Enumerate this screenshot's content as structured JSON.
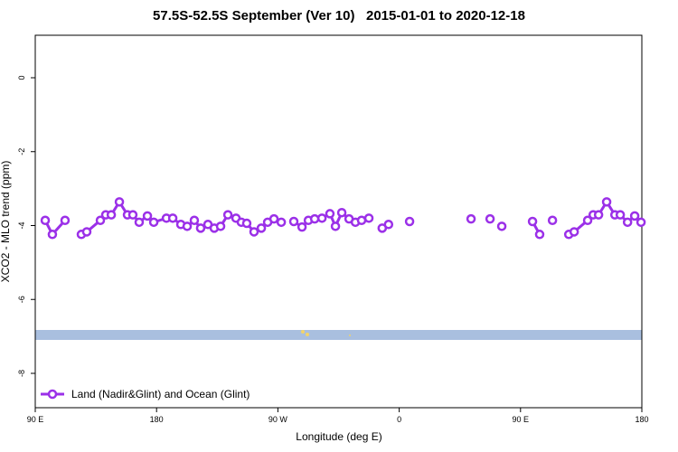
{
  "chart_data": {
    "type": "line",
    "title": "57.5S-52.5S September (Ver 10)   2015-01-01 to 2020-12-18",
    "x_label": "Longitude (deg E)",
    "y_label": "XCO2 - MLO trend (ppm)",
    "xlim": [
      90,
      540
    ],
    "xticks": [
      {
        "value": 90,
        "label": "90 E"
      },
      180,
      {
        "value": 270,
        "label": "90 W"
      },
      {
        "value": 360,
        "label": "0"
      },
      {
        "value": 450,
        "label": "90 E"
      },
      {
        "value": 540,
        "label": "180"
      }
    ],
    "ylim": [
      -8.93,
      1.15
    ],
    "yticks": [
      0,
      -2,
      -4,
      -6,
      -8
    ],
    "legend": "bottom-left",
    "series": [
      {
        "name": "Land (Nadir&Glint) and Ocean (Glint)",
        "color": "#9b30e8",
        "x": [
          97.4,
          102.7,
          112.1,
          null,
          124.2,
          128.2,
          138.3,
          142.3,
          146.4,
          152.4,
          158.4,
          162.4,
          167.1,
          173.2,
          177.9,
          187.3,
          192.0,
          198.0,
          202.7,
          208.0,
          212.7,
          218.1,
          222.8,
          227.5,
          232.9,
          238.9,
          242.9,
          246.9,
          252.3,
          257.7,
          262.4,
          267.1,
          272.5,
          null,
          281.8,
          287.9,
          292.6,
          297.3,
          302.7,
          308.6,
          312.7,
          317.4,
          322.8,
          327.5,
          332.1,
          337.5,
          null,
          347.4,
          352.1,
          null,
          367.7,
          null,
          413.3,
          null,
          427.4,
          null,
          436.1,
          null,
          458.9,
          464.2,
          null,
          473.7,
          null,
          485.8,
          489.8,
          499.8,
          503.9,
          507.9,
          513.9,
          520.0,
          524.0,
          529.4,
          534.7,
          539.4
        ],
        "values": [
          -3.86,
          -4.24,
          -3.86,
          null,
          -4.24,
          -4.17,
          -3.86,
          -3.71,
          -3.71,
          -3.36,
          -3.71,
          -3.71,
          -3.91,
          -3.74,
          -3.91,
          -3.8,
          -3.8,
          -3.97,
          -4.02,
          -3.86,
          -4.07,
          -3.97,
          -4.07,
          -4.02,
          -3.71,
          -3.8,
          -3.91,
          -3.94,
          -4.17,
          -4.07,
          -3.91,
          -3.82,
          -3.91,
          null,
          -3.89,
          -4.04,
          -3.86,
          -3.82,
          -3.8,
          -3.68,
          -4.02,
          -3.65,
          -3.82,
          -3.91,
          -3.86,
          -3.8,
          null,
          -4.07,
          -3.97,
          null,
          -3.89,
          null,
          -3.82,
          null,
          -3.82,
          null,
          -4.02,
          null,
          -3.89,
          -4.24,
          null,
          -3.86,
          null,
          -4.24,
          -4.17,
          -3.86,
          -3.71,
          -3.71,
          -3.36,
          -3.71,
          -3.71,
          -3.91,
          -3.74,
          -3.91
        ]
      }
    ]
  }
}
